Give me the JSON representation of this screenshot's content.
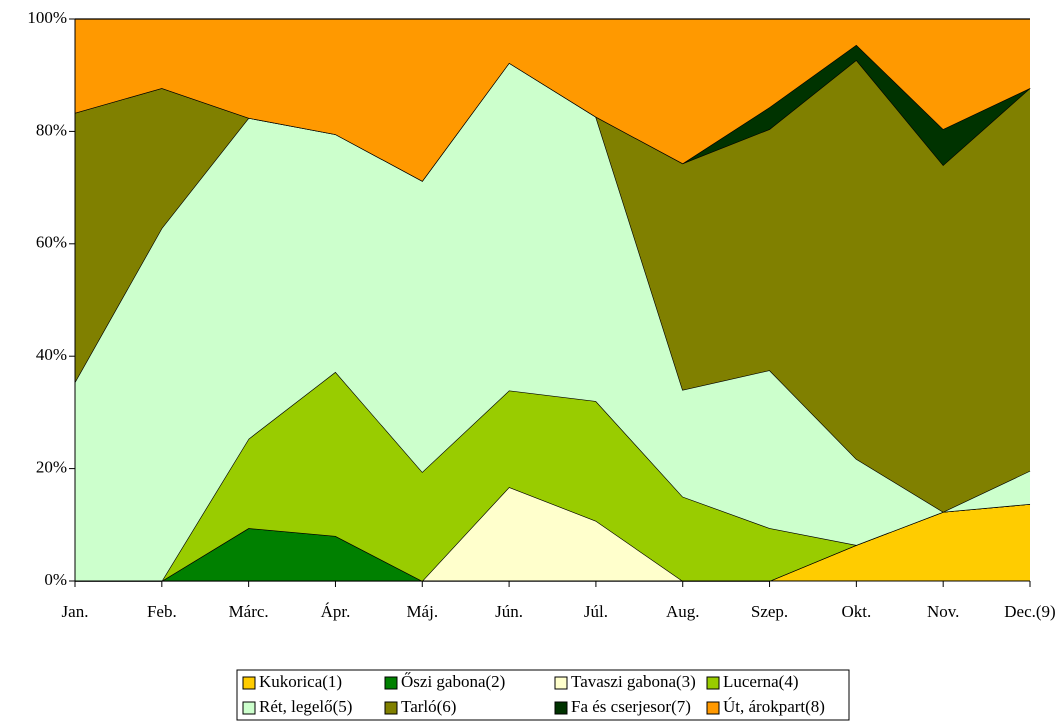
{
  "chart_data": {
    "type": "stacked_area_percent",
    "categories": [
      "Jan.",
      "Feb.",
      "Márc.",
      "Ápr.",
      "Máj.",
      "Jún.",
      "Júl.",
      "Aug.",
      "Szep.",
      "Okt.",
      "Nov.",
      "Dec.(9)"
    ],
    "ylim": [
      0,
      100
    ],
    "yticks": [
      {
        "value": 0,
        "label": "0%"
      },
      {
        "value": 20,
        "label": "20%"
      },
      {
        "value": 40,
        "label": "40%"
      },
      {
        "value": 60,
        "label": "60%"
      },
      {
        "value": 80,
        "label": "80%"
      },
      {
        "value": 100,
        "label": "100%"
      }
    ],
    "grid": false,
    "legend": "bottom",
    "series": [
      {
        "name": "Kukorica(1)",
        "color": "#ffcc00",
        "values": [
          0,
          0,
          0,
          0,
          0,
          0,
          0,
          0,
          0,
          6.4,
          12.3,
          13.7
        ]
      },
      {
        "name": "Őszi gabona(2)",
        "color": "#008000",
        "values": [
          0,
          0,
          9.4,
          8.0,
          0,
          0,
          0,
          0,
          0,
          0,
          0,
          0
        ]
      },
      {
        "name": "Tavaszi gabona(3)",
        "color": "#ffffcc",
        "values": [
          0,
          0,
          0,
          0,
          0,
          16.7,
          10.7,
          0,
          0,
          0,
          0,
          0
        ]
      },
      {
        "name": "Lucerna(4)",
        "color": "#99cc00",
        "values": [
          0,
          0,
          15.9,
          29.2,
          19.4,
          17.2,
          21.3,
          15.0,
          9.4,
          0,
          0,
          0
        ]
      },
      {
        "name": "Rét, legelő(5)",
        "color": "#ccffcc",
        "values": [
          35.4,
          62.8,
          57.1,
          42.3,
          51.8,
          58.3,
          50.6,
          19.0,
          28.1,
          15.3,
          0,
          5.9
        ]
      },
      {
        "name": "Tarló(6)",
        "color": "#808000",
        "values": [
          47.9,
          24.9,
          0,
          0,
          0,
          0,
          0,
          40.3,
          42.9,
          71.0,
          61.7,
          68.1
        ]
      },
      {
        "name": "Fa és cserjesor(7)",
        "color": "#003300",
        "values": [
          0,
          0,
          0,
          0,
          0,
          0,
          0,
          0,
          3.9,
          2.7,
          6.4,
          0
        ]
      },
      {
        "name": "Út, árokpart(8)",
        "color": "#ff9900",
        "values": [
          16.7,
          12.3,
          17.6,
          20.5,
          28.8,
          7.8,
          17.4,
          25.7,
          15.7,
          4.6,
          19.6,
          12.3
        ]
      }
    ]
  }
}
